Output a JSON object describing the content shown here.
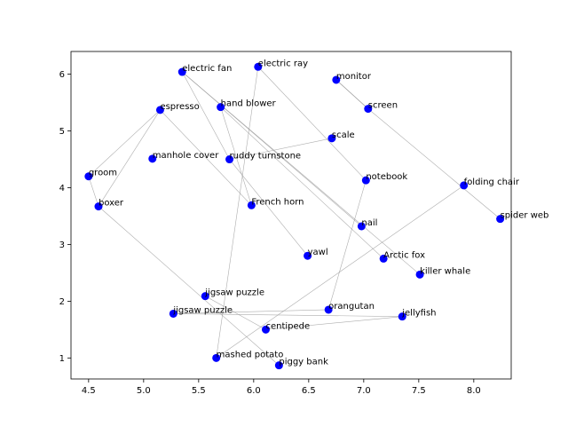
{
  "chart_data": {
    "type": "scatter",
    "title": "",
    "xlabel": "",
    "ylabel": "",
    "xlim": [
      4.34,
      8.34
    ],
    "ylim": [
      0.63,
      6.4
    ],
    "xticks": [
      "4.5",
      "5.0",
      "5.5",
      "6.0",
      "6.5",
      "7.0",
      "7.5",
      "8.0"
    ],
    "xtick_values": [
      4.5,
      5.0,
      5.5,
      6.0,
      6.5,
      7.0,
      7.5,
      8.0
    ],
    "yticks": [
      "1",
      "2",
      "3",
      "4",
      "5",
      "6"
    ],
    "ytick_values": [
      1,
      2,
      3,
      4,
      5,
      6
    ],
    "point_color": "#0000ff",
    "edge_color": "#999999",
    "points": [
      {
        "label": "electric ray",
        "x": 6.04,
        "y": 6.13
      },
      {
        "label": "electric fan",
        "x": 5.35,
        "y": 6.04
      },
      {
        "label": "monitor",
        "x": 6.75,
        "y": 5.9
      },
      {
        "label": "hand blower",
        "x": 5.7,
        "y": 5.42
      },
      {
        "label": "espresso",
        "x": 5.15,
        "y": 5.37
      },
      {
        "label": "screen",
        "x": 7.04,
        "y": 5.39
      },
      {
        "label": "scale",
        "x": 6.71,
        "y": 4.87
      },
      {
        "label": "manhole cover",
        "x": 5.08,
        "y": 4.51
      },
      {
        "label": "ruddy turnstone",
        "x": 5.78,
        "y": 4.5
      },
      {
        "label": "groom",
        "x": 4.5,
        "y": 4.2
      },
      {
        "label": "notebook",
        "x": 7.02,
        "y": 4.13
      },
      {
        "label": "folding chair",
        "x": 7.91,
        "y": 4.04
      },
      {
        "label": "boxer",
        "x": 4.59,
        "y": 3.67
      },
      {
        "label": "French horn",
        "x": 5.98,
        "y": 3.69
      },
      {
        "label": "spider web",
        "x": 8.24,
        "y": 3.45
      },
      {
        "label": "nail",
        "x": 6.98,
        "y": 3.32
      },
      {
        "label": "yawl",
        "x": 6.49,
        "y": 2.8
      },
      {
        "label": "Arctic fox",
        "x": 7.18,
        "y": 2.75
      },
      {
        "label": "killer whale",
        "x": 7.51,
        "y": 2.47
      },
      {
        "label": "jigsaw puzzle",
        "x": 5.56,
        "y": 2.09
      },
      {
        "label": "orangutan",
        "x": 6.68,
        "y": 1.85
      },
      {
        "label": "jigsaw puzzle",
        "x": 5.27,
        "y": 1.78
      },
      {
        "label": "jellyfish",
        "x": 7.35,
        "y": 1.73
      },
      {
        "label": "centipede",
        "x": 6.11,
        "y": 1.5
      },
      {
        "label": "mashed potato",
        "x": 5.66,
        "y": 1.0
      },
      {
        "label": "piggy bank",
        "x": 6.23,
        "y": 0.87
      }
    ],
    "edges": [
      [
        1,
        15
      ],
      [
        1,
        18
      ],
      [
        3,
        13
      ],
      [
        3,
        17
      ],
      [
        4,
        13
      ],
      [
        4,
        12
      ],
      [
        5,
        14
      ],
      [
        5,
        2
      ],
      [
        9,
        12
      ],
      [
        9,
        4
      ],
      [
        12,
        25
      ],
      [
        6,
        8
      ],
      [
        8,
        16
      ],
      [
        8,
        1
      ],
      [
        11,
        24
      ],
      [
        2,
        5
      ],
      [
        20,
        10
      ],
      [
        10,
        0
      ],
      [
        0,
        24
      ],
      [
        19,
        23
      ],
      [
        21,
        22
      ],
      [
        22,
        23
      ],
      [
        20,
        21
      ]
    ]
  }
}
